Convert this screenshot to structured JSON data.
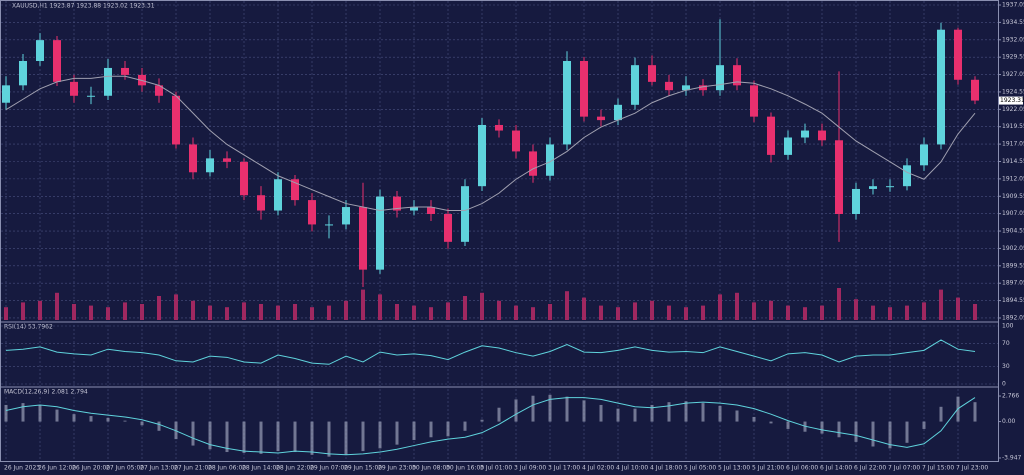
{
  "chart_data": {
    "type": "candlestick",
    "title": "XAUUSD,H1  1923.87 1923.88 1923.02 1923.31",
    "categories": [
      "26 Jun 2023",
      null,
      "26 Jun 12:00",
      null,
      "26 Jun 20:00",
      null,
      "27 Jun 05:00",
      null,
      "27 Jun 13:00",
      null,
      "27 Jun 21:00",
      null,
      "28 Jun 06:00",
      null,
      "28 Jun 14:00",
      null,
      "28 Jun 22:00",
      null,
      "29 Jun 07:00",
      null,
      "29 Jun 15:00",
      null,
      "29 Jun 23:00",
      null,
      "30 Jun 08:00",
      null,
      "30 Jun 16:00",
      null,
      "3 Jul 01:00",
      null,
      "3 Jul 09:00",
      null,
      "3 Jul 17:00",
      null,
      "4 Jul 02:00",
      null,
      "4 Jul 10:00",
      null,
      "4 Jul 18:00",
      null,
      "5 Jul 05:00",
      null,
      "5 Jul 13:00",
      null,
      "5 Jul 21:00",
      null,
      "6 Jul 06:00",
      null,
      "6 Jul 14:00",
      null,
      "6 Jul 22:00",
      null,
      "7 Jul 07:00",
      null,
      "7 Jul 15:00",
      null,
      "7 Jul 23:00",
      null
    ],
    "open": [
      1923,
      1925.5,
      1929,
      1932,
      1926,
      1924,
      1924,
      1928,
      1927,
      1925.5,
      1924,
      1917,
      1913,
      1915,
      1914.5,
      1909.7,
      1907.5,
      1912,
      1909,
      1905.5,
      1905.5,
      1908,
      1899,
      1909.5,
      1907.5,
      1908,
      1907,
      1903,
      1911,
      1919.8,
      1919,
      1916,
      1912.5,
      1917,
      1929,
      1921,
      1920.5,
      1922.7,
      1928.4,
      1926,
      1924.8,
      1925.5,
      1924.8,
      1928.4,
      1925.5,
      1921,
      1915.5,
      1918,
      1919,
      1917.6,
      1907,
      1910.6,
      1911,
      1911,
      1914,
      1917,
      1933.5,
      1926.3
    ],
    "high": [
      1926.8,
      1930,
      1933,
      1932.6,
      1927,
      1925.3,
      1929.3,
      1929,
      1928,
      1926.5,
      1924.6,
      1918,
      1916.2,
      1916,
      1915,
      1911,
      1913,
      1912.6,
      1910,
      1906.8,
      1909,
      1911.5,
      1910.5,
      1910.3,
      1909,
      1909,
      1907.8,
      1912,
      1920.8,
      1920.6,
      1919.8,
      1917,
      1918,
      1930.4,
      1929.6,
      1922,
      1923.6,
      1929.5,
      1929.8,
      1927,
      1926.8,
      1926.4,
      1935,
      1929.4,
      1926.2,
      1921.6,
      1919,
      1920,
      1920,
      1927.5,
      1911.5,
      1912,
      1912,
      1915,
      1918,
      1934.5,
      1933.8,
      1926.8
    ],
    "low": [
      1922,
      1924.8,
      1928.3,
      1925.4,
      1923,
      1922.8,
      1923.4,
      1926.3,
      1924.6,
      1923,
      1916.4,
      1912,
      1912.4,
      1913.6,
      1909,
      1906.2,
      1906.8,
      1908.2,
      1904.5,
      1903.5,
      1904.8,
      1896.5,
      1898.4,
      1906.5,
      1906.8,
      1906,
      1902,
      1902.4,
      1910.3,
      1918,
      1915,
      1911.5,
      1911.8,
      1916.2,
      1920.3,
      1919.6,
      1919.8,
      1922,
      1925.5,
      1924,
      1924,
      1924,
      1924,
      1924.8,
      1920.2,
      1914.4,
      1914.8,
      1917.2,
      1916.8,
      1903,
      1906.2,
      1909.8,
      1910.2,
      1910.4,
      1913.2,
      1916.3,
      1925.6,
      1922.8
    ],
    "close": [
      1925.5,
      1929,
      1932,
      1926,
      1924,
      1924,
      1928,
      1927,
      1925.5,
      1924,
      1917,
      1913,
      1915,
      1914.5,
      1909.7,
      1907.5,
      1912,
      1909,
      1905.5,
      1905.5,
      1908,
      1899,
      1909.5,
      1907.5,
      1908,
      1907,
      1903,
      1911,
      1919.8,
      1919,
      1916,
      1912.5,
      1917,
      1929,
      1921,
      1920.5,
      1922.7,
      1928.4,
      1926,
      1924.8,
      1925.5,
      1924.8,
      1928.4,
      1925.5,
      1921,
      1915.5,
      1918,
      1919,
      1917.6,
      1907,
      1910.6,
      1911,
      1911,
      1914,
      1917,
      1933.5,
      1926.3,
      1923.31
    ],
    "ma": [
      1922,
      1923.5,
      1925,
      1926,
      1926.5,
      1926.5,
      1926.8,
      1926.8,
      1926.2,
      1925.5,
      1924,
      1921.5,
      1919,
      1917,
      1915.5,
      1914,
      1912.5,
      1911.5,
      1910.5,
      1909.5,
      1908.5,
      1908,
      1907.5,
      1907.8,
      1908,
      1908,
      1907.5,
      1907.5,
      1908.5,
      1910,
      1912,
      1913.5,
      1914.5,
      1916,
      1918,
      1919.5,
      1920.5,
      1921.5,
      1923,
      1924,
      1924.8,
      1925.3,
      1925.6,
      1926,
      1925.8,
      1925,
      1924,
      1922.8,
      1921.5,
      1919.5,
      1917.5,
      1916,
      1914.5,
      1913,
      1912,
      1914.5,
      1918.5,
      1921.5
    ],
    "volume": [
      40,
      55,
      60,
      85,
      50,
      45,
      40,
      55,
      50,
      75,
      80,
      60,
      45,
      40,
      55,
      50,
      45,
      50,
      40,
      45,
      60,
      95,
      80,
      50,
      45,
      40,
      55,
      75,
      85,
      60,
      45,
      40,
      50,
      90,
      70,
      45,
      40,
      55,
      60,
      45,
      40,
      45,
      80,
      85,
      55,
      60,
      45,
      40,
      45,
      100,
      65,
      45,
      40,
      45,
      55,
      95,
      70,
      50
    ],
    "ylim": [
      1891.76,
      1937.77
    ],
    "yticks": [
      1937.05,
      1934.55,
      1932.05,
      1929.55,
      1927.05,
      1924.55,
      1922.05,
      1919.55,
      1917.05,
      1914.55,
      1912.05,
      1909.55,
      1907.05,
      1904.55,
      1902.05,
      1899.55,
      1897.05,
      1894.55,
      1892.05
    ],
    "grid": true,
    "up_color": "#5fd3dc",
    "down_color": "#e8306e",
    "ma_color": "#a0a0b0",
    "rsi": {
      "label": "RSI(14) 53.7962",
      "ylim": [
        0,
        100
      ],
      "yticks": [
        100,
        70,
        30,
        0
      ],
      "values": [
        58,
        60,
        64,
        55,
        52,
        50,
        60,
        56,
        54,
        50,
        40,
        38,
        48,
        46,
        38,
        36,
        50,
        44,
        36,
        34,
        48,
        38,
        55,
        50,
        52,
        49,
        42,
        55,
        66,
        62,
        54,
        48,
        56,
        68,
        55,
        54,
        58,
        64,
        58,
        55,
        56,
        54,
        64,
        56,
        48,
        40,
        52,
        54,
        50,
        38,
        48,
        50,
        50,
        54,
        58,
        76,
        60,
        56
      ]
    },
    "macd": {
      "label": "MACD(12,26,9) 2.081 2.794",
      "ylim": [
        -4.38,
        3.42
      ],
      "yticks": [
        2.766,
        {
          "value": 0,
          "label": "0.00"
        },
        -3.947
      ],
      "hist": [
        1.8,
        2,
        1.8,
        1.3,
        0.8,
        0.6,
        0.4,
        0.1,
        -0.4,
        -1,
        -1.9,
        -2.6,
        -3,
        -3.3,
        -3.4,
        -3.5,
        -3.2,
        -3.3,
        -3.6,
        -3.8,
        -3.6,
        -3.2,
        -2.9,
        -2.5,
        -2,
        -1.7,
        -1.6,
        -1,
        0.2,
        1.5,
        2.4,
        2.8,
        2.9,
        2.7,
        2.3,
        1.8,
        1.4,
        1.4,
        1.8,
        2.1,
        2.2,
        2,
        1.7,
        1.2,
        0.5,
        -0.2,
        -0.8,
        -1.1,
        -1.3,
        -1.7,
        -2.2,
        -2.7,
        -2.9,
        -2.3,
        -0.8,
        1.6,
        2.7,
        2.1
      ],
      "signal": [
        1.2,
        1.6,
        1.8,
        1.6,
        1.2,
        0.9,
        0.7,
        0.5,
        0.2,
        -0.3,
        -1,
        -1.8,
        -2.5,
        -2.9,
        -3.2,
        -3.3,
        -3.4,
        -3.2,
        -3.3,
        -3.5,
        -3.6,
        -3.5,
        -3.3,
        -3,
        -2.6,
        -2.2,
        -1.9,
        -1.7,
        -1.2,
        -0.3,
        0.8,
        1.8,
        2.4,
        2.6,
        2.6,
        2.4,
        2,
        1.6,
        1.5,
        1.7,
        2,
        2.1,
        2,
        1.8,
        1.4,
        0.8,
        0.1,
        -0.5,
        -0.9,
        -1.2,
        -1.5,
        -2,
        -2.5,
        -2.8,
        -2.4,
        -1,
        1.4,
        2.6
      ]
    }
  }
}
